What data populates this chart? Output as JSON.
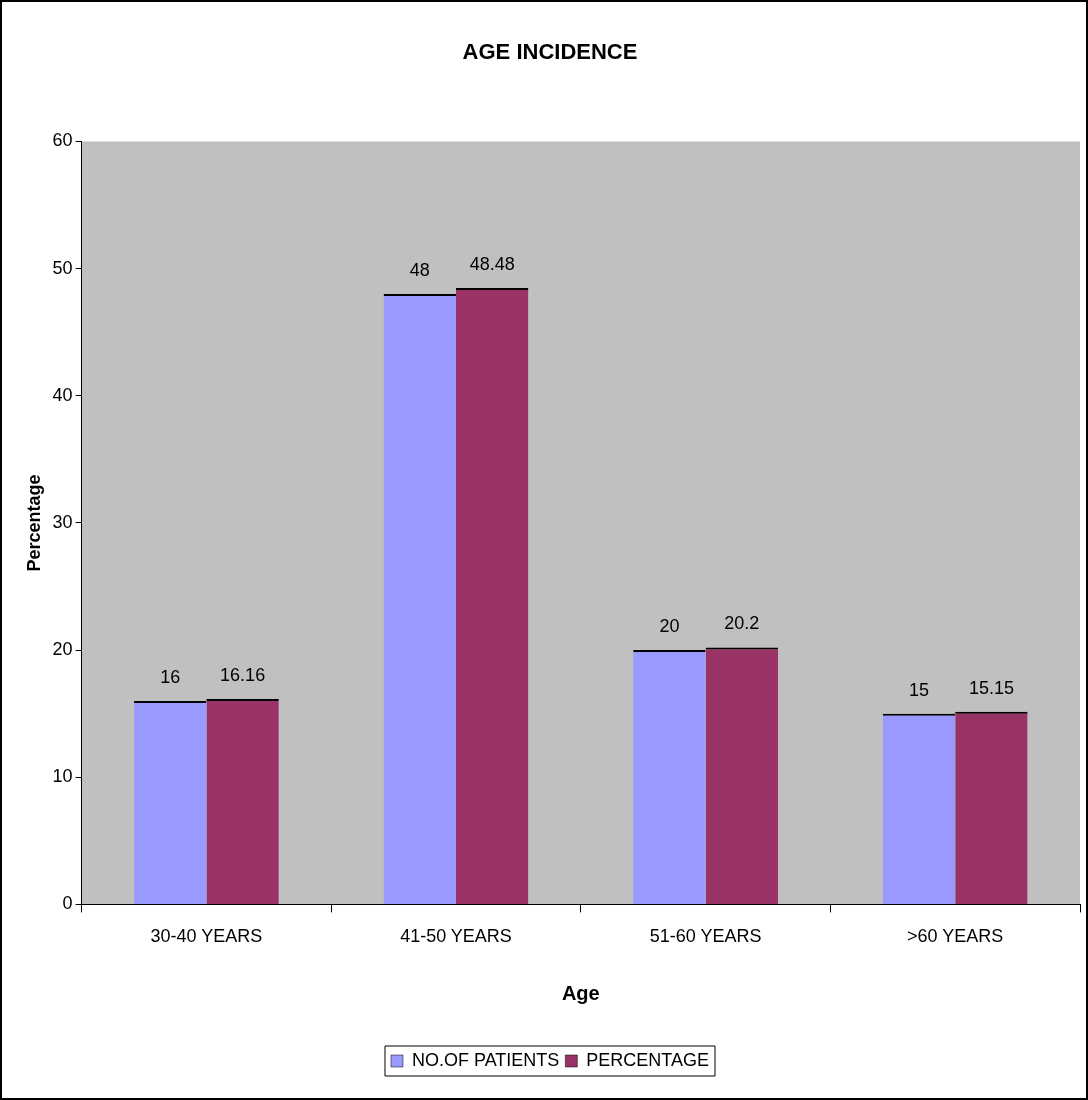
{
  "chart_data": {
    "type": "bar",
    "title": "AGE INCIDENCE",
    "xlabel": "Age",
    "ylabel": "Percentage",
    "categories": [
      "30-40 YEARS",
      "41-50 YEARS",
      "51-60 YEARS",
      ">60 YEARS"
    ],
    "series": [
      {
        "name": "NO.OF PATIENTS",
        "color": "#9999ff",
        "values": [
          16,
          48,
          20,
          15
        ]
      },
      {
        "name": "PERCENTAGE",
        "color": "#993366",
        "values": [
          16.16,
          48.48,
          20.2,
          15.15
        ]
      }
    ],
    "ylim": [
      0,
      60
    ],
    "yticks": [
      0,
      10,
      20,
      30,
      40,
      50,
      60
    ],
    "data_labels": true,
    "legend": "bottom"
  }
}
